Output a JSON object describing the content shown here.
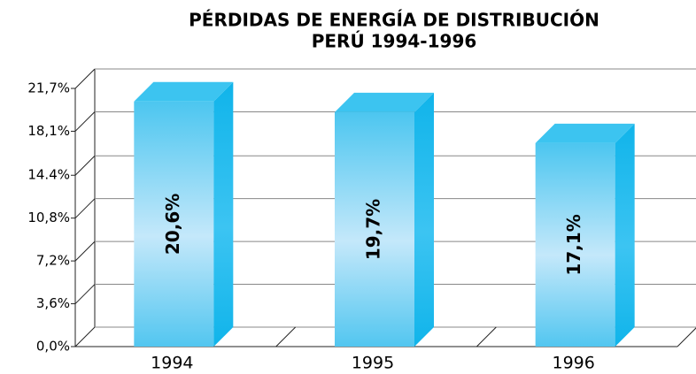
{
  "chart_data": {
    "type": "bar3d",
    "title": [
      "PÉRDIDAS DE ENERGÍA DE DISTRIBUCIÓN",
      "PERÚ 1994-1996"
    ],
    "categories": [
      "1994",
      "1995",
      "1996"
    ],
    "values": [
      20.6,
      19.7,
      17.1
    ],
    "value_labels": [
      "20,6%",
      "19,7%",
      "17,1%"
    ],
    "color": "#3cc4f0",
    "ylim": [
      0,
      21.7
    ],
    "yticks": [
      {
        "value": 0,
        "label": "0,0%"
      },
      {
        "value": 3.6,
        "label": "3,6%"
      },
      {
        "value": 7.2,
        "label": "7,2%"
      },
      {
        "value": 10.8,
        "label": "10,8%"
      },
      {
        "value": 14.4,
        "label": "14.4%"
      },
      {
        "value": 18.1,
        "label": "18,1%"
      },
      {
        "value": 21.7,
        "label": "21,7%"
      }
    ],
    "grid": true
  }
}
